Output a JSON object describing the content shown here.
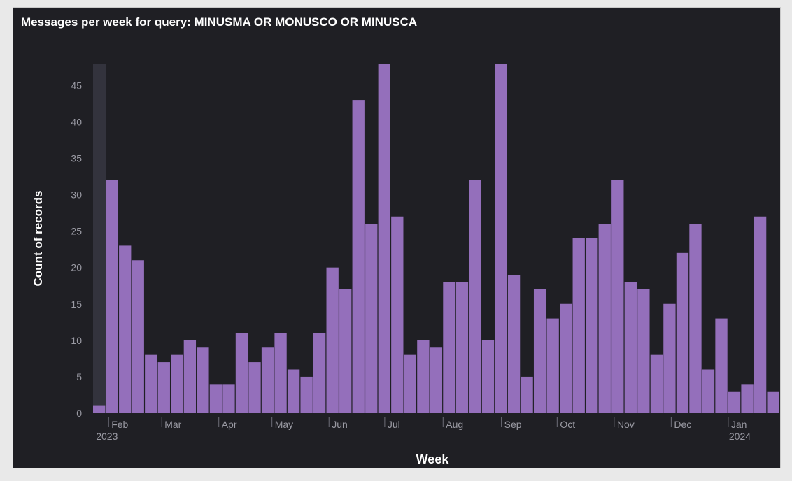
{
  "panel": {
    "title": "Messages per week for query: MINUSMA OR MONUSCO OR MINUSCA"
  },
  "chart_data": {
    "type": "bar",
    "title": "Messages per week for query: MINUSMA OR MONUSCO OR MINUSCA",
    "xlabel": "Week",
    "ylabel": "Count of records",
    "ylim": [
      0,
      48
    ],
    "yticks": [
      0,
      5,
      10,
      15,
      20,
      25,
      30,
      35,
      40,
      45
    ],
    "bar_color": "#946fbb",
    "values": [
      1,
      32,
      23,
      21,
      8,
      7,
      8,
      10,
      9,
      4,
      4,
      11,
      7,
      9,
      11,
      6,
      5,
      11,
      20,
      17,
      43,
      26,
      48,
      27,
      8,
      10,
      9,
      18,
      18,
      32,
      10,
      48,
      19,
      5,
      17,
      13,
      15,
      24,
      24,
      26,
      32,
      18,
      17,
      8,
      15,
      22,
      26,
      6,
      13,
      3,
      4,
      27,
      3
    ],
    "x_ticks": [
      {
        "label": "Feb",
        "year": "2023",
        "index": 1.2
      },
      {
        "label": "Mar",
        "index": 5.3
      },
      {
        "label": "Apr",
        "index": 9.7
      },
      {
        "label": "May",
        "index": 13.8
      },
      {
        "label": "Jun",
        "index": 18.2
      },
      {
        "label": "Jul",
        "index": 22.5
      },
      {
        "label": "Aug",
        "index": 27.0
      },
      {
        "label": "Sep",
        "index": 31.5
      },
      {
        "label": "Oct",
        "index": 35.8
      },
      {
        "label": "Nov",
        "index": 40.2
      },
      {
        "label": "Dec",
        "index": 44.6
      },
      {
        "label": "Jan",
        "year": "2024",
        "index": 49.0
      }
    ],
    "highlight_index": 0,
    "grid": false
  }
}
